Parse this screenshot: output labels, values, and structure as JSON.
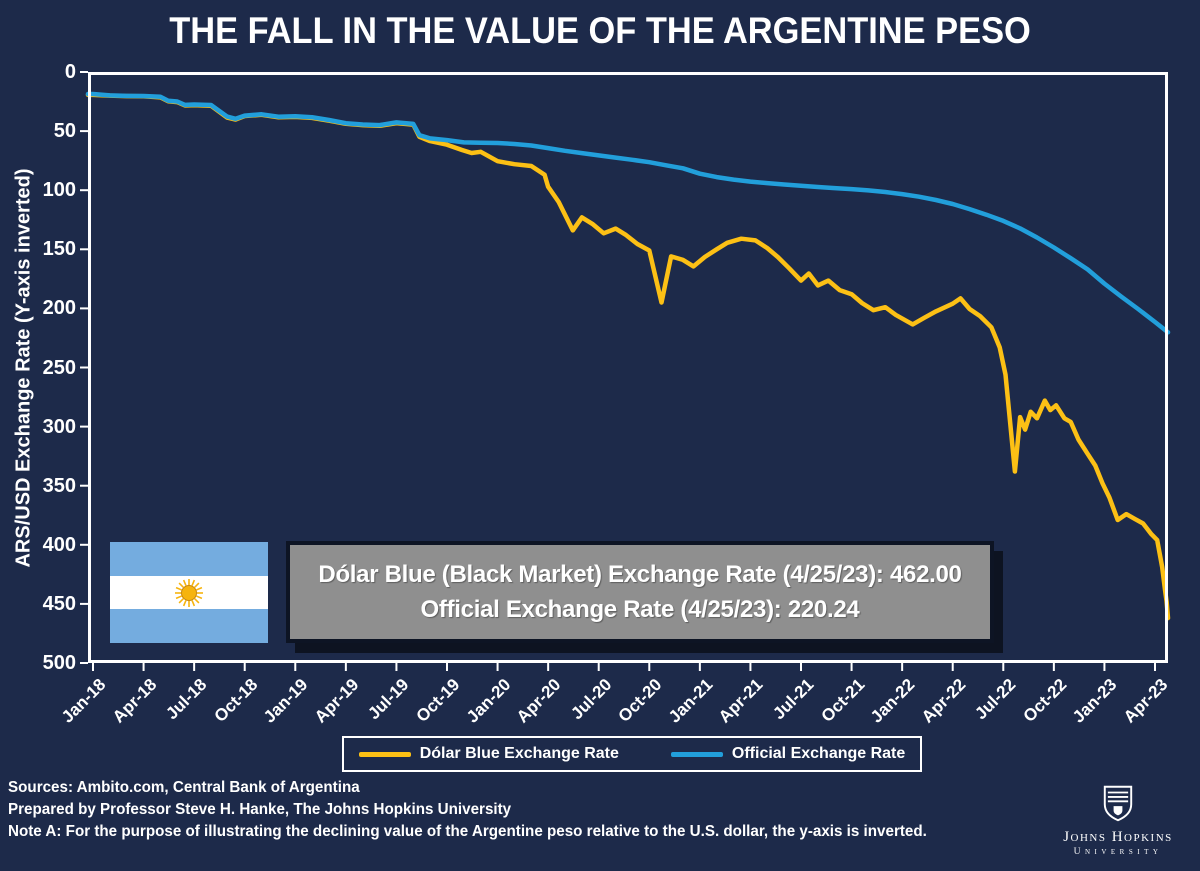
{
  "title": "THE FALL IN THE VALUE OF THE ARGENTINE PESO",
  "colors": {
    "background": "#1d2a4a",
    "yellow_line": "#fcc015",
    "blue_line": "#229fdb",
    "axis": "#ffffff",
    "annotation_bg": "#8f8f8f",
    "flag_blue": "#74acdf",
    "flag_sun": "#f6b40e"
  },
  "chart_data": {
    "type": "line",
    "title": "THE FALL IN THE VALUE OF THE ARGENTINE PESO",
    "xlabel": "",
    "ylabel": "ARS/USD Exchange Rate (Y-axis inverted)",
    "ylim": [
      0,
      500
    ],
    "y_axis_inverted": true,
    "grid": false,
    "legend_position": "bottom",
    "yticks": [
      0,
      50,
      100,
      150,
      200,
      250,
      300,
      350,
      400,
      450,
      500
    ],
    "xticks": [
      "Jan-18",
      "Apr-18",
      "Jul-18",
      "Oct-18",
      "Jan-19",
      "Apr-19",
      "Jul-19",
      "Oct-19",
      "Jan-20",
      "Apr-20",
      "Jul-20",
      "Oct-20",
      "Jan-21",
      "Apr-21",
      "Jul-21",
      "Oct-21",
      "Jan-22",
      "Apr-22",
      "Jul-22",
      "Oct-22",
      "Jan-23",
      "Apr-23"
    ],
    "xtick_interval_months": 3,
    "x_start": "2018-01",
    "x_end": "2023-04-25",
    "series": [
      {
        "name": "Dólar Blue Exchange Rate",
        "color": "#fcc015",
        "points": [
          [
            "2018-01-01",
            19.4
          ],
          [
            "2018-02-01",
            20.0
          ],
          [
            "2018-03-01",
            20.4
          ],
          [
            "2018-04-01",
            20.6
          ],
          [
            "2018-05-01",
            21.5
          ],
          [
            "2018-05-15",
            24.8
          ],
          [
            "2018-06-01",
            25.5
          ],
          [
            "2018-06-15",
            28.3
          ],
          [
            "2018-07-01",
            28.0
          ],
          [
            "2018-08-01",
            28.5
          ],
          [
            "2018-08-30",
            38.5
          ],
          [
            "2018-09-15",
            40.2
          ],
          [
            "2018-10-01",
            37.2
          ],
          [
            "2018-11-01",
            36.2
          ],
          [
            "2018-12-01",
            38.3
          ],
          [
            "2019-01-01",
            38.0
          ],
          [
            "2019-02-01",
            38.8
          ],
          [
            "2019-03-01",
            41.2
          ],
          [
            "2019-04-01",
            43.8
          ],
          [
            "2019-05-01",
            44.9
          ],
          [
            "2019-06-01",
            45.5
          ],
          [
            "2019-07-01",
            43.2
          ],
          [
            "2019-08-01",
            44.5
          ],
          [
            "2019-08-12",
            54.8
          ],
          [
            "2019-09-01",
            58.5
          ],
          [
            "2019-10-01",
            61.5
          ],
          [
            "2019-10-28",
            66.0
          ],
          [
            "2019-11-15",
            68.5
          ],
          [
            "2019-12-01",
            67.5
          ],
          [
            "2020-01-01",
            75.5
          ],
          [
            "2020-02-01",
            78.0
          ],
          [
            "2020-03-01",
            79.5
          ],
          [
            "2020-03-25",
            87.0
          ],
          [
            "2020-04-01",
            97.0
          ],
          [
            "2020-04-20",
            110.0
          ],
          [
            "2020-05-15",
            134.0
          ],
          [
            "2020-06-01",
            123.0
          ],
          [
            "2020-06-20",
            128.5
          ],
          [
            "2020-07-10",
            136.5
          ],
          [
            "2020-08-01",
            132.5
          ],
          [
            "2020-08-20",
            138.0
          ],
          [
            "2020-09-10",
            145.5
          ],
          [
            "2020-10-01",
            151.0
          ],
          [
            "2020-10-23",
            195.0
          ],
          [
            "2020-11-10",
            156.0
          ],
          [
            "2020-12-01",
            159.0
          ],
          [
            "2020-12-20",
            164.5
          ],
          [
            "2021-01-10",
            156.5
          ],
          [
            "2021-02-01",
            150.0
          ],
          [
            "2021-02-20",
            144.5
          ],
          [
            "2021-03-15",
            141.0
          ],
          [
            "2021-04-10",
            142.5
          ],
          [
            "2021-05-01",
            149.0
          ],
          [
            "2021-05-20",
            156.5
          ],
          [
            "2021-06-10",
            166.0
          ],
          [
            "2021-07-01",
            176.5
          ],
          [
            "2021-07-15",
            170.5
          ],
          [
            "2021-08-01",
            180.5
          ],
          [
            "2021-08-20",
            176.5
          ],
          [
            "2021-09-10",
            184.5
          ],
          [
            "2021-10-01",
            188.0
          ],
          [
            "2021-10-20",
            195.5
          ],
          [
            "2021-11-10",
            201.5
          ],
          [
            "2021-12-01",
            199.0
          ],
          [
            "2021-12-20",
            205.5
          ],
          [
            "2022-01-20",
            213.5
          ],
          [
            "2022-02-10",
            208.0
          ],
          [
            "2022-03-01",
            202.5
          ],
          [
            "2022-04-01",
            196.0
          ],
          [
            "2022-04-15",
            191.5
          ],
          [
            "2022-05-01",
            200.5
          ],
          [
            "2022-05-20",
            206.5
          ],
          [
            "2022-06-10",
            216.0
          ],
          [
            "2022-06-25",
            233.0
          ],
          [
            "2022-07-05",
            256.0
          ],
          [
            "2022-07-22",
            338.0
          ],
          [
            "2022-08-01",
            292.0
          ],
          [
            "2022-08-10",
            302.5
          ],
          [
            "2022-08-20",
            287.5
          ],
          [
            "2022-09-01",
            293.0
          ],
          [
            "2022-09-15",
            278.0
          ],
          [
            "2022-09-25",
            286.0
          ],
          [
            "2022-10-05",
            282.0
          ],
          [
            "2022-10-20",
            293.0
          ],
          [
            "2022-11-01",
            296.0
          ],
          [
            "2022-11-15",
            311.0
          ],
          [
            "2022-12-01",
            323.0
          ],
          [
            "2022-12-15",
            333.0
          ],
          [
            "2022-12-28",
            348.0
          ],
          [
            "2023-01-10",
            360.0
          ],
          [
            "2023-01-25",
            379.0
          ],
          [
            "2023-02-10",
            374.0
          ],
          [
            "2023-02-25",
            378.0
          ],
          [
            "2023-03-10",
            382.0
          ],
          [
            "2023-03-25",
            391.0
          ],
          [
            "2023-04-05",
            396.0
          ],
          [
            "2023-04-14",
            419.0
          ],
          [
            "2023-04-19",
            438.0
          ],
          [
            "2023-04-22",
            448.0
          ],
          [
            "2023-04-25",
            462.0
          ]
        ]
      },
      {
        "name": "Official Exchange Rate",
        "color": "#229fdb",
        "points": [
          [
            "2018-01-01",
            18.6
          ],
          [
            "2018-02-01",
            19.8
          ],
          [
            "2018-03-01",
            20.2
          ],
          [
            "2018-04-01",
            20.3
          ],
          [
            "2018-05-01",
            21.0
          ],
          [
            "2018-05-15",
            24.3
          ],
          [
            "2018-06-01",
            25.0
          ],
          [
            "2018-06-15",
            27.8
          ],
          [
            "2018-07-01",
            27.5
          ],
          [
            "2018-08-01",
            27.9
          ],
          [
            "2018-08-30",
            37.7
          ],
          [
            "2018-09-15",
            39.6
          ],
          [
            "2018-10-01",
            36.9
          ],
          [
            "2018-11-01",
            35.8
          ],
          [
            "2018-12-01",
            37.8
          ],
          [
            "2019-01-01",
            37.5
          ],
          [
            "2019-02-01",
            38.2
          ],
          [
            "2019-03-01",
            40.6
          ],
          [
            "2019-04-01",
            43.3
          ],
          [
            "2019-05-01",
            44.4
          ],
          [
            "2019-06-01",
            44.9
          ],
          [
            "2019-07-01",
            42.6
          ],
          [
            "2019-08-01",
            43.9
          ],
          [
            "2019-08-12",
            53.5
          ],
          [
            "2019-09-01",
            56.2
          ],
          [
            "2019-10-01",
            57.6
          ],
          [
            "2019-11-01",
            59.6
          ],
          [
            "2019-12-01",
            59.9
          ],
          [
            "2020-01-01",
            60.1
          ],
          [
            "2020-02-01",
            60.9
          ],
          [
            "2020-03-01",
            62.2
          ],
          [
            "2020-04-01",
            64.4
          ],
          [
            "2020-05-01",
            66.7
          ],
          [
            "2020-06-01",
            68.6
          ],
          [
            "2020-07-01",
            70.6
          ],
          [
            "2020-08-01",
            72.4
          ],
          [
            "2020-09-01",
            74.3
          ],
          [
            "2020-10-01",
            76.3
          ],
          [
            "2020-11-01",
            78.9
          ],
          [
            "2020-12-01",
            81.5
          ],
          [
            "2021-01-01",
            86.0
          ],
          [
            "2021-02-01",
            88.9
          ],
          [
            "2021-03-01",
            91.0
          ],
          [
            "2021-04-01",
            92.7
          ],
          [
            "2021-05-01",
            94.0
          ],
          [
            "2021-06-01",
            95.2
          ],
          [
            "2021-07-01",
            96.3
          ],
          [
            "2021-08-01",
            97.3
          ],
          [
            "2021-09-01",
            98.2
          ],
          [
            "2021-10-01",
            99.1
          ],
          [
            "2021-11-01",
            100.2
          ],
          [
            "2021-12-01",
            101.5
          ],
          [
            "2022-01-01",
            103.3
          ],
          [
            "2022-02-01",
            105.5
          ],
          [
            "2022-03-01",
            108.3
          ],
          [
            "2022-04-01",
            111.7
          ],
          [
            "2022-05-01",
            116.0
          ],
          [
            "2022-06-01",
            120.7
          ],
          [
            "2022-07-01",
            126.0
          ],
          [
            "2022-08-01",
            132.3
          ],
          [
            "2022-09-01",
            140.0
          ],
          [
            "2022-10-01",
            148.5
          ],
          [
            "2022-11-01",
            157.5
          ],
          [
            "2022-12-01",
            167.0
          ],
          [
            "2023-01-01",
            179.0
          ],
          [
            "2023-02-01",
            190.0
          ],
          [
            "2023-03-01",
            200.5
          ],
          [
            "2023-04-01",
            211.5
          ],
          [
            "2023-04-25",
            220.24
          ]
        ]
      }
    ]
  },
  "annotation": {
    "line1": "Dólar Blue (Black Market) Exchange Rate (4/25/23): 462.00",
    "line2": "Official Exchange Rate (4/25/23): 220.24"
  },
  "legend": {
    "items": [
      {
        "label": "Dólar Blue Exchange Rate",
        "color": "#fcc015"
      },
      {
        "label": "Official Exchange Rate",
        "color": "#229fdb"
      }
    ]
  },
  "footer": {
    "sources": "Sources: Ambito.com, Central Bank of Argentina",
    "prepared": "Prepared by Professor Steve H. Hanke, The Johns Hopkins University",
    "note": "Note A: For the purpose of illustrating the declining value of the Argentine peso relative to the U.S. dollar, the y-axis is inverted."
  },
  "logo": {
    "name": "Johns Hopkins",
    "sub": "University"
  }
}
